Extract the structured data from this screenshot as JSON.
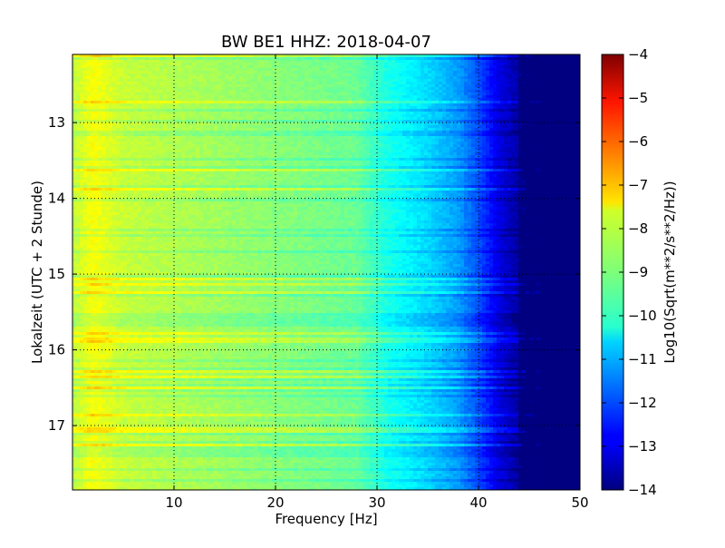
{
  "chart_data": {
    "type": "heatmap",
    "title": "BW BE1 HHZ: 2018-04-07",
    "xlabel": "Frequency [Hz]",
    "ylabel": "Lokalzeit (UTC + 2 Stunde)",
    "xlim": [
      0,
      50
    ],
    "ylim": [
      12.1,
      17.85
    ],
    "y_inverted": true,
    "x_ticks": [
      "10",
      "20",
      "30",
      "40",
      "50"
    ],
    "x_tick_values": [
      10,
      20,
      30,
      40,
      50
    ],
    "y_ticks": [
      "13",
      "14",
      "15",
      "16",
      "17"
    ],
    "y_tick_values": [
      13,
      14,
      15,
      16,
      17
    ],
    "grid": true,
    "colormap": "jet",
    "colorbar": {
      "label": "Log10(Sqrt(m**2/s**2/Hz))",
      "range": [
        -14,
        -4
      ],
      "ticks": [
        "−4",
        "−5",
        "−6",
        "−7",
        "−8",
        "−9",
        "−10",
        "−11",
        "−12",
        "−13",
        "−14"
      ],
      "tick_values": [
        -4,
        -5,
        -6,
        -7,
        -8,
        -9,
        -10,
        -11,
        -12,
        -13,
        -14
      ]
    },
    "spectral_profile": {
      "frequency": [
        0,
        2,
        5,
        10,
        20,
        28,
        31,
        35,
        38,
        40,
        42,
        45,
        50
      ],
      "log_psd": [
        -8.4,
        -7.8,
        -8.3,
        -8.5,
        -8.9,
        -9.2,
        -10.0,
        -10.6,
        -11.2,
        -12.0,
        -13.0,
        -14.0,
        -14.0
      ]
    }
  }
}
